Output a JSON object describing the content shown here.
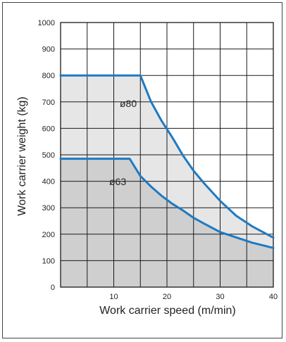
{
  "chart_data": {
    "type": "area",
    "xlabel": "Work carrier speed  (m/min)",
    "ylabel": "Work carrier weight (kg)",
    "xlim": [
      0,
      40
    ],
    "ylim": [
      0,
      1000
    ],
    "x_ticks": [
      "10",
      "20",
      "30",
      "40"
    ],
    "y_ticks": [
      "0",
      "100",
      "200",
      "300",
      "400",
      "500",
      "600",
      "700",
      "800",
      "900",
      "1000"
    ],
    "grid": true,
    "series": [
      {
        "name": "ø80",
        "x": [
          0,
          15,
          17,
          19,
          21,
          23,
          25,
          27,
          30,
          33,
          36,
          40
        ],
        "y": [
          800,
          800,
          701,
          628,
          566,
          498,
          440,
          392,
          326,
          270,
          230,
          187
        ]
      },
      {
        "name": "ø63",
        "x": [
          0,
          13,
          15,
          17,
          19,
          21,
          23,
          25,
          27,
          30,
          33,
          36,
          40
        ],
        "y": [
          485,
          485,
          420,
          380,
          345,
          315,
          290,
          262,
          240,
          208,
          188,
          168,
          148
        ]
      }
    ],
    "colors": {
      "line": "#1f7ac1",
      "outer_fill": "#e6e6e6",
      "inner_fill": "#cfcfcf",
      "grid": "#1a1a1a"
    }
  }
}
